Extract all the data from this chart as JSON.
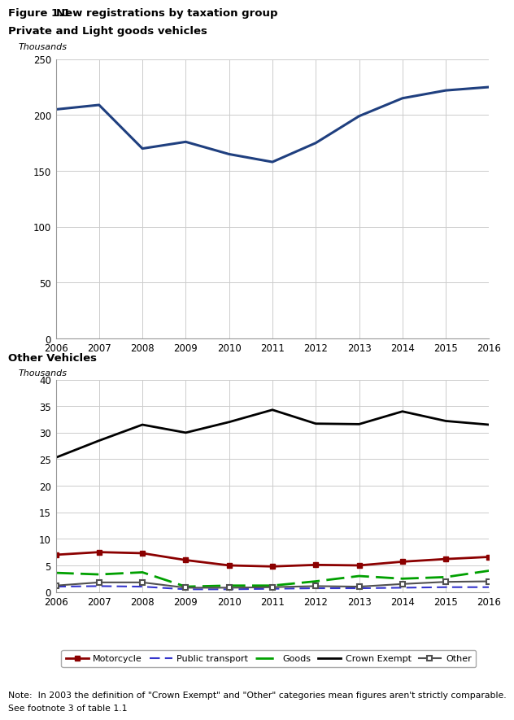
{
  "figure_title_bold": "Figure 1.1",
  "figure_title_rest": "New registrations by taxation group",
  "chart1_title": "Private and Light goods vehicles",
  "chart2_title": "Other Vehicles",
  "thousands_label": "Thousands",
  "years": [
    2006,
    2007,
    2008,
    2009,
    2010,
    2011,
    2012,
    2013,
    2014,
    2015,
    2016
  ],
  "plg_values": [
    205,
    209,
    170,
    176,
    165,
    158,
    175,
    199,
    215,
    222,
    225
  ],
  "motorcycle": [
    7.0,
    7.5,
    7.3,
    6.0,
    5.0,
    4.8,
    5.1,
    5.0,
    5.7,
    6.2,
    6.6
  ],
  "public_transport": [
    1.0,
    1.1,
    1.0,
    0.5,
    0.5,
    0.6,
    0.7,
    0.7,
    0.8,
    0.9,
    0.9
  ],
  "goods": [
    3.6,
    3.3,
    3.7,
    1.0,
    1.2,
    1.2,
    2.0,
    3.0,
    2.5,
    2.8,
    4.0
  ],
  "crown_exempt": [
    25.3,
    28.5,
    31.5,
    30.0,
    32.0,
    34.3,
    31.7,
    31.6,
    34.0,
    32.2,
    31.5
  ],
  "other": [
    1.2,
    1.8,
    1.8,
    0.8,
    0.8,
    0.9,
    1.1,
    1.0,
    1.5,
    1.9,
    2.0
  ],
  "plg_color": "#1F3F7F",
  "motorcycle_color": "#8B0000",
  "public_transport_color": "#3535CC",
  "goods_color": "#00A000",
  "crown_exempt_color": "#000000",
  "other_color": "#505050",
  "grid_color": "#CCCCCC",
  "spine_color": "#999999",
  "note_line1": "Note:  In 2003 the definition of \"Crown Exempt\" and \"Other\" categories mean figures aren't strictly comparable.",
  "note_line2": "See footnote 3 of table 1.1"
}
